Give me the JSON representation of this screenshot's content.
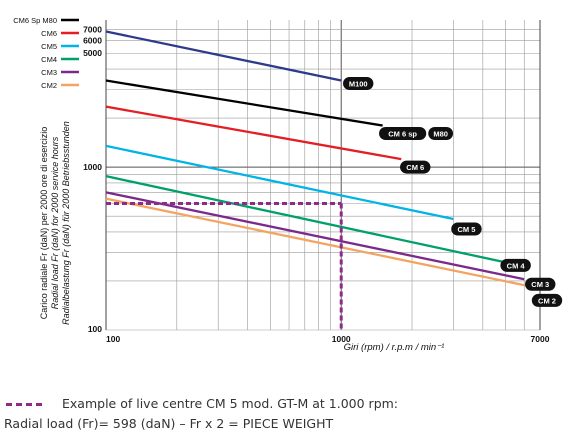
{
  "chart_data": {
    "type": "line",
    "xscale": "log",
    "yscale": "log",
    "xlim": [
      100,
      7000
    ],
    "ylim": [
      100,
      8000
    ],
    "xticks": [
      "100",
      "1000",
      "7000"
    ],
    "yticks": [
      "100",
      "1000",
      "5000",
      "6000",
      "7000"
    ],
    "xlabel": "Giri (rpm) / r.p.m / min⁻¹",
    "ylabel": [
      "Carico radiale Fr (daN) per 2000 ore di esercizio",
      "Radial load Fr (daN) for 2000 service hours",
      "Radialbelastung Fr (daN) für 2000 Betriebsstunden"
    ],
    "grid": true,
    "legend_position": "top-left",
    "legend": [
      "CM6 Sp M80",
      "CM6",
      "CM5",
      "CM4",
      "CM3",
      "CM2"
    ],
    "series": [
      {
        "name": "M100",
        "color": "#2e3a8c",
        "x": [
          100,
          1000
        ],
        "y": [
          6800,
          3400
        ]
      },
      {
        "name": "CM 6 sp  M80",
        "color": "#000000",
        "x": [
          100,
          1500
        ],
        "y": [
          3400,
          1800
        ]
      },
      {
        "name": "CM 6",
        "color": "#e31e24",
        "x": [
          100,
          1800
        ],
        "y": [
          2350,
          1120
        ]
      },
      {
        "name": "CM 5",
        "color": "#00b4e6",
        "x": [
          100,
          3000
        ],
        "y": [
          1350,
          480
        ]
      },
      {
        "name": "CM 4",
        "color": "#00a06a",
        "x": [
          100,
          5000
        ],
        "y": [
          880,
          260
        ]
      },
      {
        "name": "CM 3",
        "color": "#7b2a8c",
        "x": [
          100,
          6000
        ],
        "y": [
          700,
          205
        ]
      },
      {
        "name": "CM 2",
        "color": "#f4a460",
        "x": [
          100,
          7000
        ],
        "y": [
          640,
          180
        ]
      }
    ],
    "reference": {
      "x": 1000,
      "y": 598,
      "color": "#8e2a8a"
    }
  },
  "captions": {
    "line1": "Example of live centre CM 5 mod. GT-M at 1.000 rpm:",
    "line2": "Radial load (Fr)= 598 (daN) – Fr x 2 = PIECE WEIGHT"
  }
}
